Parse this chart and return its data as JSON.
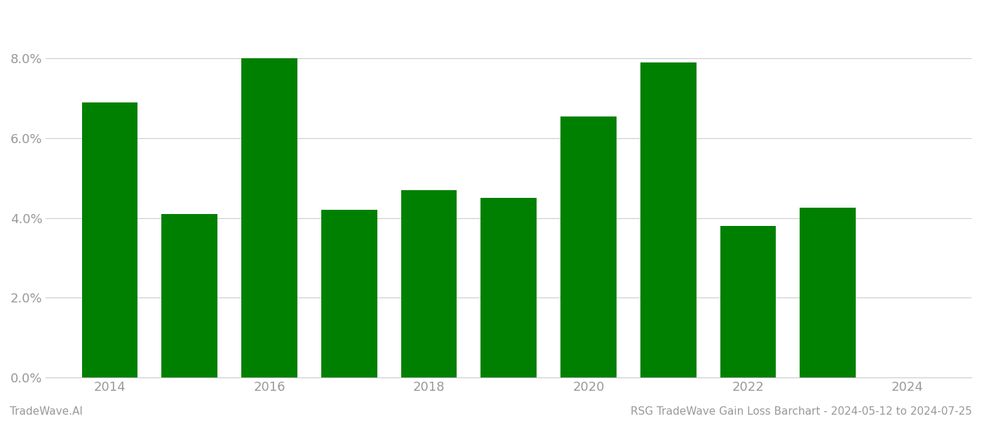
{
  "years": [
    2014,
    2015,
    2016,
    2017,
    2018,
    2019,
    2020,
    2021,
    2022,
    2023,
    2024
  ],
  "values": [
    0.069,
    0.041,
    0.08,
    0.042,
    0.047,
    0.045,
    0.0655,
    0.079,
    0.038,
    0.0425,
    0.0
  ],
  "bar_color": "#008000",
  "background_color": "#ffffff",
  "ylim": [
    0,
    0.092
  ],
  "yticks": [
    0.0,
    0.02,
    0.04,
    0.06,
    0.08
  ],
  "xtick_years": [
    2014,
    2016,
    2018,
    2020,
    2022,
    2024
  ],
  "xlabel": "",
  "ylabel": "",
  "title": "",
  "footer_left": "TradeWave.AI",
  "footer_right": "RSG TradeWave Gain Loss Barchart - 2024-05-12 to 2024-07-25",
  "footer_color": "#999999",
  "footer_fontsize": 11,
  "tick_color": "#999999",
  "tick_fontsize": 13,
  "grid_color": "#cccccc",
  "bar_width": 0.7,
  "xlim_left": 2013.2,
  "xlim_right": 2024.8
}
